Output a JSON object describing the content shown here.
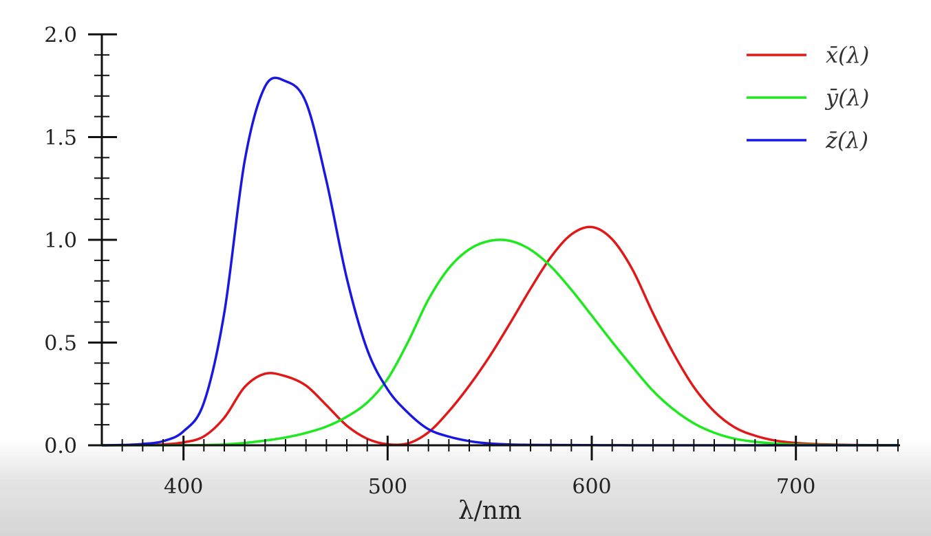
{
  "chart_data": {
    "type": "line",
    "title": "",
    "xlabel": "λ/nm",
    "ylabel": "",
    "xlim": [
      360,
      750
    ],
    "ylim": [
      0,
      2.0
    ],
    "grid": false,
    "legend_placement": "top-right",
    "x_ticks": [
      "400",
      "500",
      "600",
      "700"
    ],
    "y_ticks": [
      "0.0",
      "0.5",
      "1.0",
      "1.5",
      "2.0"
    ],
    "x": [
      360,
      370,
      380,
      390,
      400,
      410,
      420,
      430,
      440,
      450,
      460,
      470,
      480,
      490,
      500,
      510,
      520,
      530,
      540,
      550,
      560,
      570,
      580,
      590,
      600,
      610,
      620,
      630,
      640,
      650,
      660,
      670,
      680,
      690,
      700,
      710,
      720,
      730,
      740,
      750
    ],
    "series": [
      {
        "name": "x̄(λ)",
        "color": "#e01818",
        "values": [
          0,
          0.0004,
          0.0014,
          0.0042,
          0.0143,
          0.0435,
          0.1344,
          0.2839,
          0.3483,
          0.3362,
          0.2908,
          0.1954,
          0.0956,
          0.032,
          0.0049,
          0.0093,
          0.0633,
          0.1655,
          0.2904,
          0.4334,
          0.5945,
          0.7621,
          0.9163,
          1.0263,
          1.0622,
          1.0026,
          0.8544,
          0.6424,
          0.4479,
          0.2835,
          0.1649,
          0.0874,
          0.0468,
          0.0227,
          0.0114,
          0.0058,
          0.0029,
          0.0014,
          0.0007,
          0.0003
        ]
      },
      {
        "name": "ȳ(λ)",
        "color": "#1ee81e",
        "values": [
          0,
          0,
          0,
          0.0001,
          0.0004,
          0.0012,
          0.004,
          0.0116,
          0.023,
          0.038,
          0.06,
          0.091,
          0.139,
          0.208,
          0.323,
          0.503,
          0.71,
          0.862,
          0.954,
          0.995,
          0.995,
          0.952,
          0.87,
          0.757,
          0.631,
          0.503,
          0.381,
          0.265,
          0.175,
          0.107,
          0.061,
          0.032,
          0.017,
          0.0082,
          0.0041,
          0.0021,
          0.001,
          0.0005,
          0.0002,
          0.0001
        ]
      },
      {
        "name": "z̄(λ)",
        "color": "#1818e0",
        "values": [
          0,
          0.0015,
          0.0065,
          0.0201,
          0.0679,
          0.2074,
          0.6456,
          1.3856,
          1.7471,
          1.7721,
          1.6692,
          1.2876,
          0.813,
          0.4652,
          0.272,
          0.1582,
          0.0782,
          0.0422,
          0.0203,
          0.0087,
          0.0039,
          0.0021,
          0.0017,
          0.0011,
          0.0008,
          0.0003,
          0.0002,
          0,
          0,
          0,
          0,
          0,
          0,
          0,
          0,
          0,
          0,
          0,
          0,
          0
        ]
      }
    ]
  }
}
